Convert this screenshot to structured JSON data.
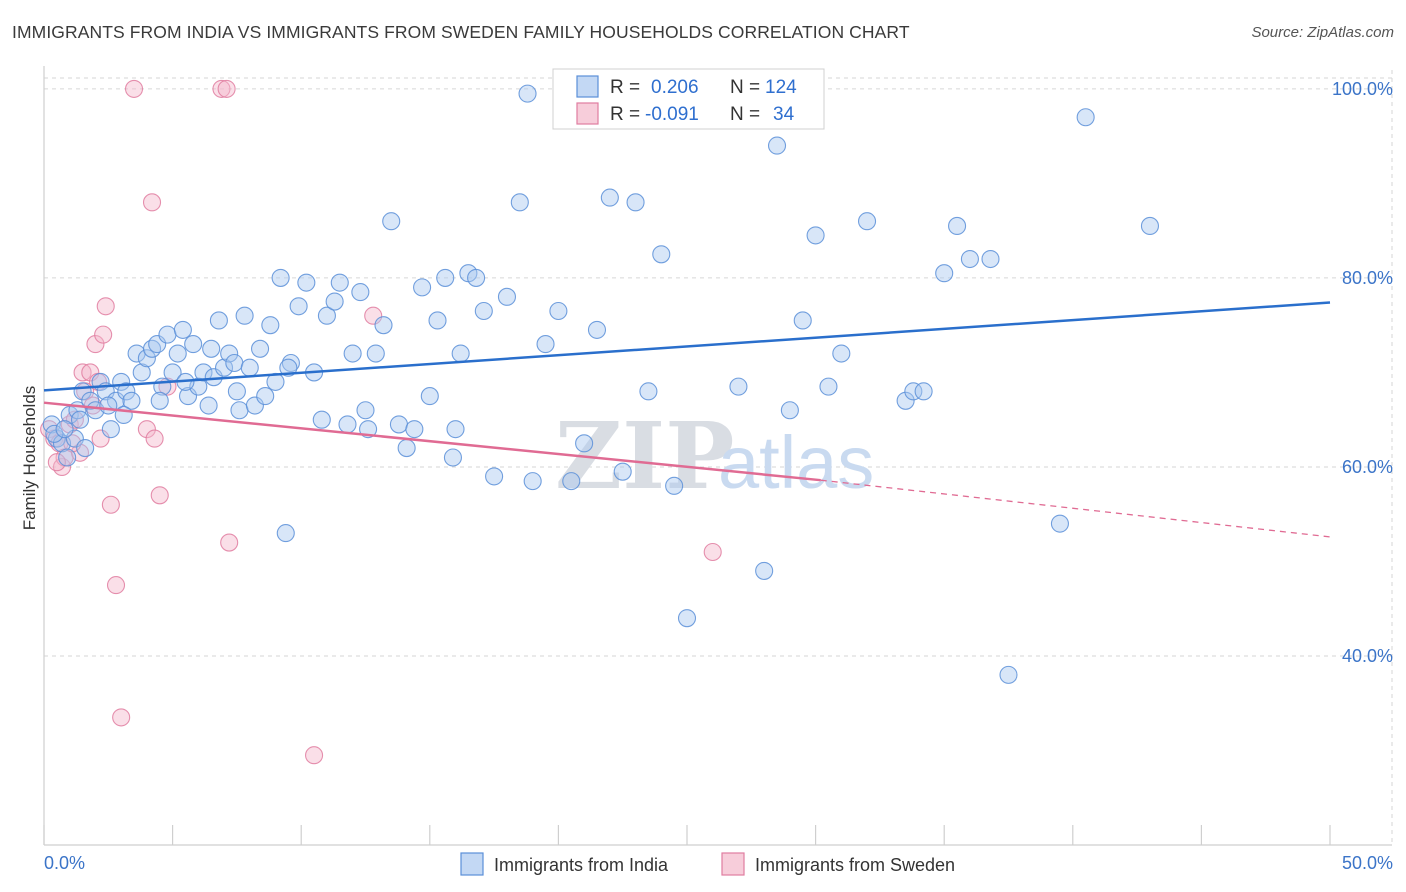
{
  "header": {
    "title": "IMMIGRANTS FROM INDIA VS IMMIGRANTS FROM SWEDEN FAMILY HOUSEHOLDS CORRELATION CHART",
    "source": "Source: ZipAtlas.com"
  },
  "watermark": {
    "zip": "ZIP",
    "atlas": "atlas"
  },
  "legend": {
    "r_label": "R =",
    "n_label": "N =",
    "india": {
      "r": "0.206",
      "n": "124"
    },
    "sweden": {
      "r": "-0.091",
      "n": "34"
    }
  },
  "colors": {
    "india_fill": "#a9c8f0",
    "india_stroke": "#5b8fd8",
    "india_line": "#2a6fcc",
    "sweden_fill": "#f4b8cb",
    "sweden_stroke": "#e07da0",
    "sweden_line": "#e06b93",
    "grid": "#d6d6d6",
    "tick_text": "#3b74c8"
  },
  "chart_data": {
    "type": "scatter",
    "title": "IMMIGRANTS FROM INDIA VS IMMIGRANTS FROM SWEDEN FAMILY HOUSEHOLDS CORRELATION CHART",
    "xlabel": "",
    "ylabel": "Family Households",
    "xlim": [
      0,
      50
    ],
    "ylim": [
      20,
      102
    ],
    "x_tick_labels": [
      "0.0%",
      "50.0%"
    ],
    "y_ticks": [
      40,
      60,
      80,
      100
    ],
    "y_tick_labels": [
      "40.0%",
      "60.0%",
      "80.0%",
      "100.0%"
    ],
    "grid": true,
    "legend_position": "top-center",
    "series": [
      {
        "name": "Immigrants from India",
        "trend": {
          "x": [
            0,
            50
          ],
          "y": [
            68.1,
            77.4
          ]
        },
        "points": [
          [
            0.3,
            64.5
          ],
          [
            0.5,
            63.0
          ],
          [
            0.7,
            62.5
          ],
          [
            0.9,
            61.0
          ],
          [
            1.0,
            65.5
          ],
          [
            1.2,
            63.0
          ],
          [
            1.3,
            66.0
          ],
          [
            1.5,
            68.0
          ],
          [
            1.6,
            62.0
          ],
          [
            1.8,
            67.0
          ],
          [
            2.0,
            66.0
          ],
          [
            2.2,
            69.0
          ],
          [
            2.4,
            68.0
          ],
          [
            2.6,
            64.0
          ],
          [
            2.8,
            67.0
          ],
          [
            3.0,
            69.0
          ],
          [
            3.2,
            68.0
          ],
          [
            3.4,
            67.0
          ],
          [
            3.6,
            72.0
          ],
          [
            3.8,
            70.0
          ],
          [
            4.0,
            71.5
          ],
          [
            4.2,
            72.5
          ],
          [
            4.4,
            73.0
          ],
          [
            4.6,
            68.5
          ],
          [
            4.8,
            74.0
          ],
          [
            5.0,
            70.0
          ],
          [
            5.2,
            72.0
          ],
          [
            5.4,
            74.5
          ],
          [
            5.6,
            67.5
          ],
          [
            5.8,
            73.0
          ],
          [
            6.0,
            68.5
          ],
          [
            6.2,
            70.0
          ],
          [
            6.5,
            72.5
          ],
          [
            6.6,
            69.5
          ],
          [
            6.8,
            75.5
          ],
          [
            7.0,
            70.5
          ],
          [
            7.2,
            72.0
          ],
          [
            7.4,
            71.0
          ],
          [
            7.6,
            66.0
          ],
          [
            7.8,
            76.0
          ],
          [
            8.0,
            70.5
          ],
          [
            8.2,
            66.5
          ],
          [
            8.4,
            72.5
          ],
          [
            8.6,
            67.5
          ],
          [
            8.8,
            75.0
          ],
          [
            9.0,
            69.0
          ],
          [
            9.2,
            80.0
          ],
          [
            9.4,
            53.0
          ],
          [
            9.6,
            71.0
          ],
          [
            9.9,
            77.0
          ],
          [
            10.2,
            79.5
          ],
          [
            10.5,
            70.0
          ],
          [
            10.8,
            65.0
          ],
          [
            11.0,
            76.0
          ],
          [
            11.3,
            77.5
          ],
          [
            11.5,
            79.5
          ],
          [
            11.8,
            64.5
          ],
          [
            12.0,
            72.0
          ],
          [
            12.3,
            78.5
          ],
          [
            12.6,
            64.0
          ],
          [
            12.9,
            72.0
          ],
          [
            13.2,
            75.0
          ],
          [
            13.5,
            86.0
          ],
          [
            13.8,
            64.5
          ],
          [
            14.1,
            62.0
          ],
          [
            14.4,
            64.0
          ],
          [
            14.7,
            79.0
          ],
          [
            15.0,
            67.5
          ],
          [
            15.3,
            75.5
          ],
          [
            15.6,
            80.0
          ],
          [
            15.9,
            61.0
          ],
          [
            16.2,
            72.0
          ],
          [
            16.5,
            80.5
          ],
          [
            16.8,
            80.0
          ],
          [
            17.1,
            76.5
          ],
          [
            17.5,
            59.0
          ],
          [
            18.0,
            78.0
          ],
          [
            18.5,
            88.0
          ],
          [
            18.8,
            99.5
          ],
          [
            19.0,
            58.5
          ],
          [
            19.5,
            73.0
          ],
          [
            20.0,
            76.5
          ],
          [
            20.5,
            58.5
          ],
          [
            21.0,
            62.5
          ],
          [
            21.5,
            74.5
          ],
          [
            22.0,
            88.5
          ],
          [
            22.5,
            59.5
          ],
          [
            23.0,
            88.0
          ],
          [
            23.5,
            68.0
          ],
          [
            24.0,
            82.5
          ],
          [
            24.5,
            58.0
          ],
          [
            25.0,
            44.0
          ],
          [
            27.0,
            68.5
          ],
          [
            28.0,
            49.0
          ],
          [
            28.5,
            94.0
          ],
          [
            29.0,
            66.0
          ],
          [
            29.5,
            75.5
          ],
          [
            30.0,
            84.5
          ],
          [
            30.5,
            68.5
          ],
          [
            31.0,
            72.0
          ],
          [
            32.0,
            86.0
          ],
          [
            33.5,
            67.0
          ],
          [
            33.8,
            68.0
          ],
          [
            34.2,
            68.0
          ],
          [
            35.0,
            80.5
          ],
          [
            35.5,
            85.5
          ],
          [
            36.0,
            82.0
          ],
          [
            36.8,
            82.0
          ],
          [
            37.5,
            38.0
          ],
          [
            39.5,
            54.0
          ],
          [
            40.5,
            97.0
          ],
          [
            43.0,
            85.5
          ],
          [
            0.4,
            63.5
          ],
          [
            0.8,
            64.0
          ],
          [
            1.4,
            65.0
          ],
          [
            2.5,
            66.5
          ],
          [
            3.1,
            65.5
          ],
          [
            4.5,
            67.0
          ],
          [
            5.5,
            69.0
          ],
          [
            6.4,
            66.5
          ],
          [
            7.5,
            68.0
          ],
          [
            9.5,
            70.5
          ],
          [
            12.5,
            66.0
          ],
          [
            16.0,
            64.0
          ]
        ]
      },
      {
        "name": "Immigrants from Sweden",
        "trend": {
          "x": [
            0,
            30.2
          ],
          "y": [
            66.8,
            58.6
          ]
        },
        "trend_extended": {
          "x": [
            30.2,
            50
          ],
          "y": [
            58.6,
            52.6
          ]
        },
        "points": [
          [
            0.2,
            64.0
          ],
          [
            0.4,
            63.0
          ],
          [
            0.6,
            62.5
          ],
          [
            0.7,
            60.0
          ],
          [
            0.8,
            61.0
          ],
          [
            1.0,
            64.5
          ],
          [
            1.2,
            65.0
          ],
          [
            1.4,
            61.5
          ],
          [
            1.5,
            70.0
          ],
          [
            1.6,
            68.0
          ],
          [
            1.8,
            70.0
          ],
          [
            1.9,
            66.5
          ],
          [
            2.0,
            73.0
          ],
          [
            2.1,
            69.0
          ],
          [
            2.2,
            63.0
          ],
          [
            2.3,
            74.0
          ],
          [
            2.4,
            77.0
          ],
          [
            2.6,
            56.0
          ],
          [
            2.8,
            47.5
          ],
          [
            3.0,
            33.5
          ],
          [
            3.5,
            100.0
          ],
          [
            4.0,
            64.0
          ],
          [
            4.2,
            88.0
          ],
          [
            4.3,
            63.0
          ],
          [
            4.5,
            57.0
          ],
          [
            4.8,
            68.5
          ],
          [
            6.9,
            100.0
          ],
          [
            7.1,
            100.0
          ],
          [
            7.2,
            52.0
          ],
          [
            10.5,
            29.5
          ],
          [
            12.8,
            76.0
          ],
          [
            26.0,
            51.0
          ],
          [
            0.5,
            60.5
          ],
          [
            1.1,
            62.5
          ]
        ]
      }
    ]
  }
}
